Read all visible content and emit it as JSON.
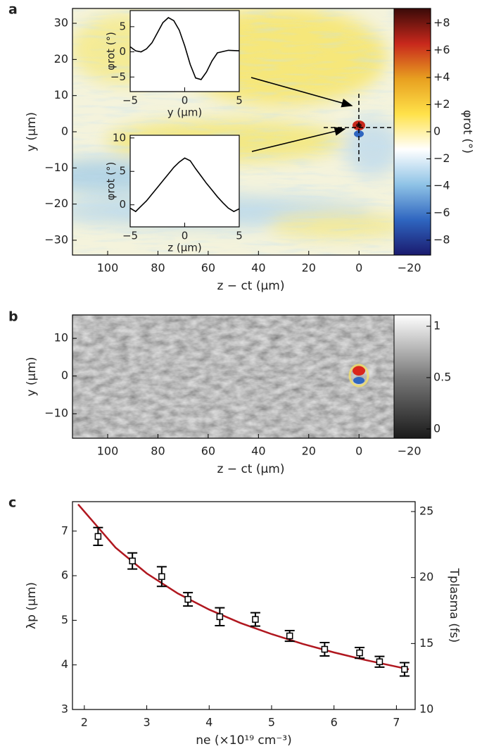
{
  "chart_data": [
    {
      "type": "heatmap",
      "panel_label": "a",
      "xlabel": "z − ct (μm)",
      "ylabel": "y (μm)",
      "xlim": [
        114,
        -28.5
      ],
      "xticks": [
        100,
        80,
        60,
        40,
        20,
        0,
        {
          "value": -20,
          "label": "−20"
        }
      ],
      "ylim": [
        -34.1,
        34.1
      ],
      "yticks": [
        {
          "value": -30,
          "label": "−30"
        },
        {
          "value": -20,
          "label": "−20"
        },
        {
          "value": -10,
          "label": "−10"
        },
        0,
        10,
        20,
        30
      ],
      "colorbar": {
        "label": "φrot (°)",
        "lim": [
          -9.1,
          9.1
        ],
        "colors": [
          "#1a1a6e",
          "#2f66c0",
          "#8fc3e6",
          "#ffffff",
          "#ffe24a",
          "#e8a020",
          "#c8281c",
          "#3a0a08"
        ],
        "ticks": [
          {
            "value": 8,
            "label": "+8"
          },
          {
            "value": 6,
            "label": "+6"
          },
          {
            "value": 4,
            "label": "+4"
          },
          {
            "value": 2,
            "label": "+2"
          },
          0,
          {
            "value": -2,
            "label": "−2"
          },
          {
            "value": -4,
            "label": "−4"
          },
          {
            "value": -6,
            "label": "−6"
          },
          {
            "value": -8,
            "label": "−8"
          }
        ]
      }
    },
    {
      "type": "line",
      "xlabel": "y (μm)",
      "ylabel": "φrot (°)",
      "color": "#000000",
      "x": [
        -5,
        -4.5,
        -4,
        -3.5,
        -3,
        -2.5,
        -2,
        -1.5,
        -1,
        -0.5,
        0,
        0.5,
        1,
        1.5,
        2,
        2.5,
        3,
        4,
        5
      ],
      "values": [
        1,
        0.2,
        0,
        0.6,
        1.8,
        3.8,
        5.8,
        6.8,
        6.2,
        4.3,
        1.2,
        -2.5,
        -5.2,
        -5.5,
        -4,
        -1.8,
        -0.2,
        0.3,
        0.2
      ],
      "xlim": [
        -5,
        5
      ],
      "xticks": [
        {
          "value": -5,
          "label": "−5"
        },
        0,
        5
      ],
      "ylim": [
        -7.9,
        8.2
      ],
      "yticks": [
        {
          "value": -5,
          "label": "−5"
        },
        0,
        5
      ]
    },
    {
      "type": "line",
      "xlabel": "z (μm)",
      "ylabel": "φrot (°)",
      "color": "#000000",
      "x": [
        -5,
        -4.5,
        -4,
        -3.5,
        -3,
        -2.5,
        -2,
        -1.5,
        -1,
        -0.5,
        0,
        0.5,
        1,
        1.5,
        2,
        2.5,
        3,
        3.5,
        4,
        4.5,
        5
      ],
      "values": [
        -0.5,
        -1,
        -0.2,
        0.6,
        1.6,
        2.6,
        3.6,
        4.6,
        5.6,
        6.4,
        7,
        6.6,
        5.4,
        4.3,
        3.2,
        2.2,
        1.2,
        0.3,
        -0.5,
        -1,
        -0.6
      ],
      "xlim": [
        -5,
        5
      ],
      "xticks": [
        {
          "value": -5,
          "label": "−5"
        },
        0,
        5
      ],
      "ylim": [
        -3.3,
        10.4
      ],
      "yticks": [
        0,
        5,
        10
      ]
    },
    {
      "type": "heatmap",
      "panel_label": "b",
      "xlabel": "z − ct (μm)",
      "ylabel": "y (μm)",
      "xlim": [
        114,
        -28.5
      ],
      "xticks": [
        100,
        80,
        60,
        40,
        20,
        0,
        {
          "value": -20,
          "label": "−20"
        }
      ],
      "ylim": [
        -16.5,
        16.2
      ],
      "yticks": [
        {
          "value": -10,
          "label": "−10"
        },
        0,
        10
      ],
      "colorbar": {
        "lim": [
          -0.09,
          1.11
        ],
        "colors": [
          "#1a1a1a",
          "#7a7a7a",
          "#ffffff"
        ],
        "ticks": [
          1,
          0.5,
          0
        ]
      }
    },
    {
      "type": "scatter",
      "panel_label": "c",
      "xlabel": "ne (×10¹⁹ cm⁻³)",
      "ylabel": "λp (μm)",
      "y2label": "Tplasma (fs)",
      "x": [
        2.22,
        2.77,
        3.24,
        3.66,
        4.17,
        4.74,
        5.29,
        5.85,
        6.41,
        6.73,
        7.13
      ],
      "values": [
        6.88,
        6.33,
        5.98,
        5.47,
        5.08,
        5.02,
        4.65,
        4.35,
        4.27,
        4.07,
        3.9
      ],
      "errors": [
        0.2,
        0.18,
        0.22,
        0.15,
        0.2,
        0.15,
        0.12,
        0.15,
        0.12,
        0.12,
        0.15
      ],
      "marker_color": "#000000",
      "fit_x": [
        1.9,
        2.5,
        3,
        3.5,
        4,
        4.5,
        5,
        5.5,
        6,
        6.5,
        7,
        7.2
      ],
      "fit_values": [
        7.6,
        6.63,
        6.05,
        5.6,
        5.24,
        4.94,
        4.69,
        4.47,
        4.28,
        4.11,
        3.96,
        3.9
      ],
      "fit_color": "#b0171f",
      "xlim": [
        1.81,
        7.3
      ],
      "xticks": [
        2,
        3,
        4,
        5,
        6,
        7
      ],
      "ylim": [
        3,
        7.66
      ],
      "yticks": [
        3,
        4,
        5,
        6,
        7
      ],
      "y2lim": [
        10,
        25.75
      ],
      "y2ticks": [
        10,
        15,
        20,
        25
      ]
    }
  ]
}
